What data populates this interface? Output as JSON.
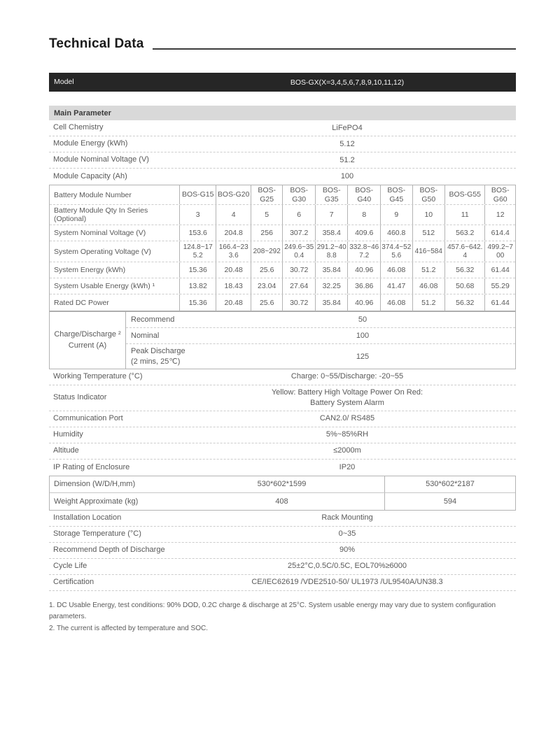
{
  "page": {
    "title": "Technical Data"
  },
  "model": {
    "label": "Model",
    "value": "BOS-GX(X=3,4,5,6,7,8,9,10,11,12)"
  },
  "section": {
    "header": "Main Parameter"
  },
  "simple_rows_top": [
    {
      "label": "Cell Chemistry",
      "value": "LiFePO4"
    },
    {
      "label": "Module Energy (kWh)",
      "value": "5.12"
    },
    {
      "label": "Module Nominal Voltage (V)",
      "value": "51.2"
    },
    {
      "label": "Module Capacity (Ah)",
      "value": "100"
    }
  ],
  "matrix": {
    "rows": [
      {
        "label": "Battery Module Number",
        "values": [
          "BOS-G15",
          "BOS-G20",
          "BOS-G25",
          "BOS-G30",
          "BOS-G35",
          "BOS-G40",
          "BOS-G45",
          "BOS-G50",
          "BOS-G55",
          "BOS-G60"
        ]
      },
      {
        "label": "Battery Module Qty In Series (Optional)",
        "values": [
          "3",
          "4",
          "5",
          "6",
          "7",
          "8",
          "9",
          "10",
          "11",
          "12"
        ]
      },
      {
        "label": "System Nominal Voltage (V)",
        "values": [
          "153.6",
          "204.8",
          "256",
          "307.2",
          "358.4",
          "409.6",
          "460.8",
          "512",
          "563.2",
          "614.4"
        ]
      },
      {
        "label": "System Operating  Voltage (V)",
        "values": [
          "124.8~175.2",
          "166.4~233.6",
          "208~292",
          "249.6~350.4",
          "291.2~408.8",
          "332.8~467.2",
          "374.4~525.6",
          "416~584",
          "457.6~642.4",
          "499.2~700"
        ]
      },
      {
        "label": "System Energy (kWh)",
        "values": [
          "15.36",
          "20.48",
          "25.6",
          "30.72",
          "35.84",
          "40.96",
          "46.08",
          "51.2",
          "56.32",
          "61.44"
        ]
      },
      {
        "label": "System Usable Energy (kWh) ¹",
        "values": [
          "13.82",
          "18.43",
          "23.04",
          "27.64",
          "32.25",
          "36.86",
          "41.47",
          "46.08",
          "50.68",
          "55.29"
        ]
      },
      {
        "label": "Rated DC Power",
        "values": [
          "15.36",
          "20.48",
          "25.6",
          "30.72",
          "35.84",
          "40.96",
          "46.08",
          "51.2",
          "56.32",
          "61.44"
        ]
      }
    ]
  },
  "charge": {
    "label": "Charge/Discharge ²\nCurrent (A)",
    "rows": [
      {
        "sublabel": "Recommend",
        "value": "50"
      },
      {
        "sublabel": "Nominal",
        "value": "100"
      },
      {
        "sublabel": "Peak Discharge\n(2 mins, 25℃)",
        "value": "125"
      }
    ]
  },
  "simple_rows_mid": [
    {
      "label": "Working Temperature (°C)",
      "value": "Charge: 0~55/Discharge: -20~55"
    },
    {
      "label": "Status  Indicator",
      "value": "Yellow: Battery High Voltage Power On  Red:\nBattery System Alarm"
    },
    {
      "label": "Communication Port",
      "value": "CAN2.0/ RS485"
    },
    {
      "label": "Humidity",
      "value": "5%~85%RH"
    },
    {
      "label": "Altitude",
      "value": "≤2000m"
    },
    {
      "label": "IP Rating of Enclosure",
      "value": "IP20"
    }
  ],
  "dual": {
    "rows": [
      {
        "label": "Dimension (W/D/H,mm)",
        "left": "530*602*1599",
        "right": "530*602*2187"
      },
      {
        "label": "Weight  Approximate (kg)",
        "left": "408",
        "right": "594"
      }
    ]
  },
  "simple_rows_bottom": [
    {
      "label": "Installation  Location",
      "value": "Rack Mounting"
    },
    {
      "label": "Storage Temperature (°C)",
      "value": "0~35"
    },
    {
      "label": "Recommend Depth of Discharge",
      "value": "90%"
    },
    {
      "label": "Cycle  Life",
      "value": "25±2°C,0.5C/0.5C, EOL70%≥6000"
    },
    {
      "label": "Certification",
      "value": "CE/IEC62619 /VDE2510-50/ UL1973 /UL9540A/UN38.3"
    }
  ],
  "footnotes": [
    "1. DC Usable Energy, test conditions: 90% DOD, 0.2C charge & discharge at 25°C. System usable energy may vary due to system configuration parameters.",
    "2. The current is affected by temperature and SOC."
  ],
  "colors": {
    "model_bar_bg": "#262626",
    "model_bar_text": "#f5f5f5",
    "section_bar_bg": "#d9d9d9",
    "body_text": "#595959",
    "border_solid": "#b3b3b3",
    "border_dashed": "#cccccc",
    "title_text": "#1a1a1a"
  }
}
